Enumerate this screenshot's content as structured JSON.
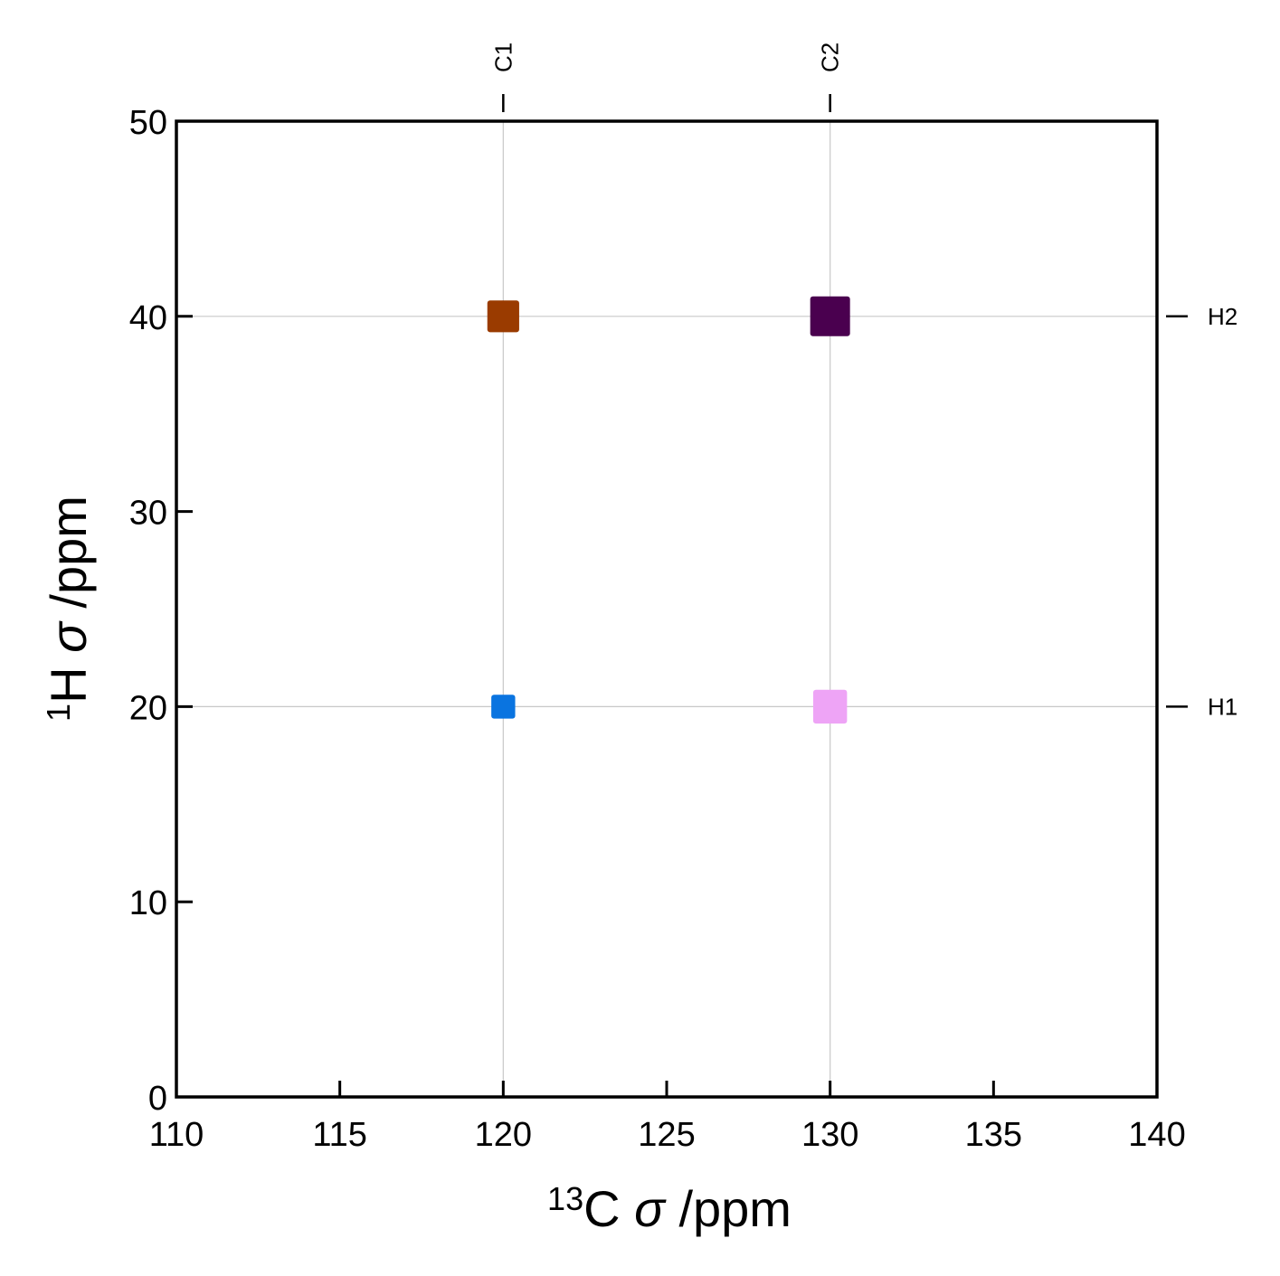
{
  "chart_data": {
    "type": "scatter",
    "marker": "square",
    "xlabel": {
      "sup": "13",
      "main": "C",
      "sym": "σ",
      "unit": "/ppm"
    },
    "ylabel": {
      "sup": "1",
      "main": "H",
      "sym": "σ",
      "unit": "/ppm"
    },
    "xlim": [
      110,
      140
    ],
    "ylim": [
      0,
      50
    ],
    "xticks": [
      "110",
      "115",
      "120",
      "125",
      "130",
      "135",
      "140"
    ],
    "yticks": [
      "0",
      "10",
      "20",
      "30",
      "40",
      "50"
    ],
    "grid": "at site positions only",
    "top_sites": [
      {
        "label": "C1",
        "value": 120
      },
      {
        "label": "C2",
        "value": 130
      }
    ],
    "right_sites": [
      {
        "label": "H1",
        "value": 20
      },
      {
        "label": "H2",
        "value": 40
      }
    ],
    "points": [
      {
        "x": 120,
        "y": 20,
        "color": "#0a74e0",
        "size": 0.6
      },
      {
        "x": 120,
        "y": 40,
        "color": "#9a3b00",
        "size": 0.8
      },
      {
        "x": 130,
        "y": 20,
        "color": "#eea4f6",
        "size": 0.85
      },
      {
        "x": 130,
        "y": 40,
        "color": "#4a004f",
        "size": 1.0
      }
    ]
  }
}
